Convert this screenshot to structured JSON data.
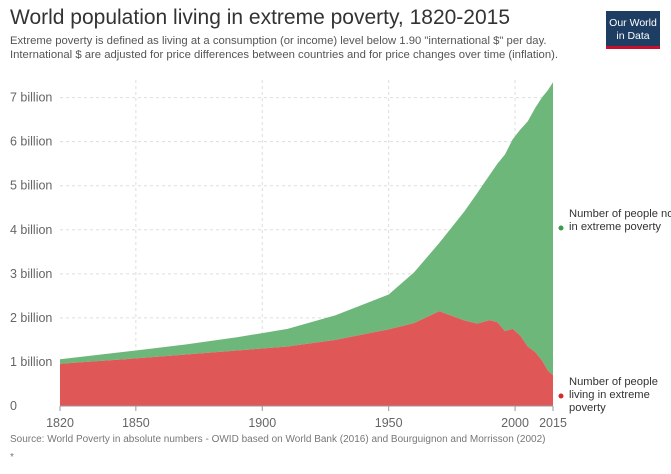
{
  "header": {
    "title": "World population living in extreme poverty, 1820-2015",
    "subtitle_line1": "Extreme poverty is defined as living at a consumption (or income) level below 1.90 \"international $\" per day.",
    "subtitle_line2": "International $ are adjusted for price differences between countries and for price changes over time (inflation).",
    "logo_line1": "Our World",
    "logo_line2": "in Data"
  },
  "footer": {
    "source": "Source: World Poverty in absolute numbers - OWID based on World Bank (2016) and Bourguignon and Morrisson (2002)",
    "note": "*"
  },
  "colors": {
    "not_poor": "#6eb77a",
    "poor": "#e05757",
    "legend_not_poor_dot": "#3e9a4e",
    "legend_poor_dot": "#d32a2a"
  },
  "chart_data": {
    "type": "area",
    "stacked": true,
    "title": "World population living in extreme poverty, 1820-2015",
    "xlabel": "",
    "ylabel": "",
    "xlim": [
      1820,
      2015
    ],
    "ylim": [
      0,
      7.4
    ],
    "y_unit": "billion",
    "grid": true,
    "legend_position": "right",
    "x_ticks": [
      1820,
      1850,
      1900,
      1950,
      2000,
      2015
    ],
    "y_ticks": [
      {
        "value": 0,
        "label": "0"
      },
      {
        "value": 1,
        "label": "1 billion"
      },
      {
        "value": 2,
        "label": "2 billion"
      },
      {
        "value": 3,
        "label": "3 billion"
      },
      {
        "value": 4,
        "label": "4 billion"
      },
      {
        "value": 5,
        "label": "5 billion"
      },
      {
        "value": 6,
        "label": "6 billion"
      },
      {
        "value": 7,
        "label": "7 billion"
      }
    ],
    "x": [
      1820,
      1850,
      1870,
      1890,
      1910,
      1929,
      1950,
      1960,
      1970,
      1980,
      1985,
      1987,
      1990,
      1993,
      1996,
      1999,
      2002,
      2005,
      2008,
      2010,
      2011,
      2012,
      2013,
      2015
    ],
    "series": [
      {
        "name": "Number of people living in extreme poverty",
        "values": [
          0.96,
          1.08,
          1.17,
          1.26,
          1.35,
          1.5,
          1.74,
          1.88,
          2.15,
          1.94,
          1.87,
          1.9,
          1.95,
          1.9,
          1.7,
          1.75,
          1.6,
          1.35,
          1.22,
          1.08,
          1.0,
          0.9,
          0.8,
          0.7
        ]
      },
      {
        "name": "Number of people not in extreme poverty",
        "values": [
          0.1,
          0.18,
          0.23,
          0.3,
          0.4,
          0.56,
          0.79,
          1.15,
          1.55,
          2.48,
          2.96,
          3.1,
          3.3,
          3.6,
          4.01,
          4.3,
          4.67,
          5.11,
          5.55,
          5.87,
          6.03,
          6.2,
          6.37,
          6.65
        ]
      }
    ]
  }
}
